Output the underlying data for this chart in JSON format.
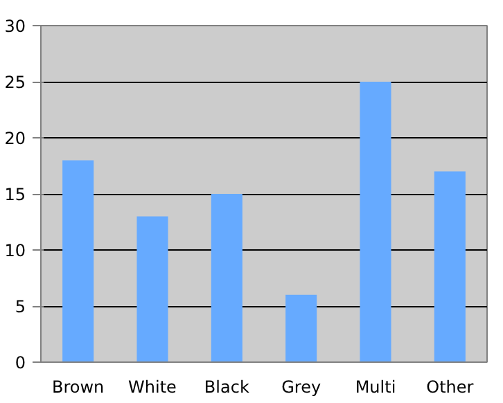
{
  "chart_data": {
    "type": "bar",
    "categories": [
      "Brown",
      "White",
      "Black",
      "Grey",
      "Multi",
      "Other"
    ],
    "values": [
      18,
      13,
      15,
      6,
      25,
      17
    ],
    "color": "#66aaff",
    "ylim": [
      0,
      30
    ],
    "yticks": [
      0,
      5,
      10,
      15,
      20,
      25,
      30
    ],
    "grid": "y"
  }
}
